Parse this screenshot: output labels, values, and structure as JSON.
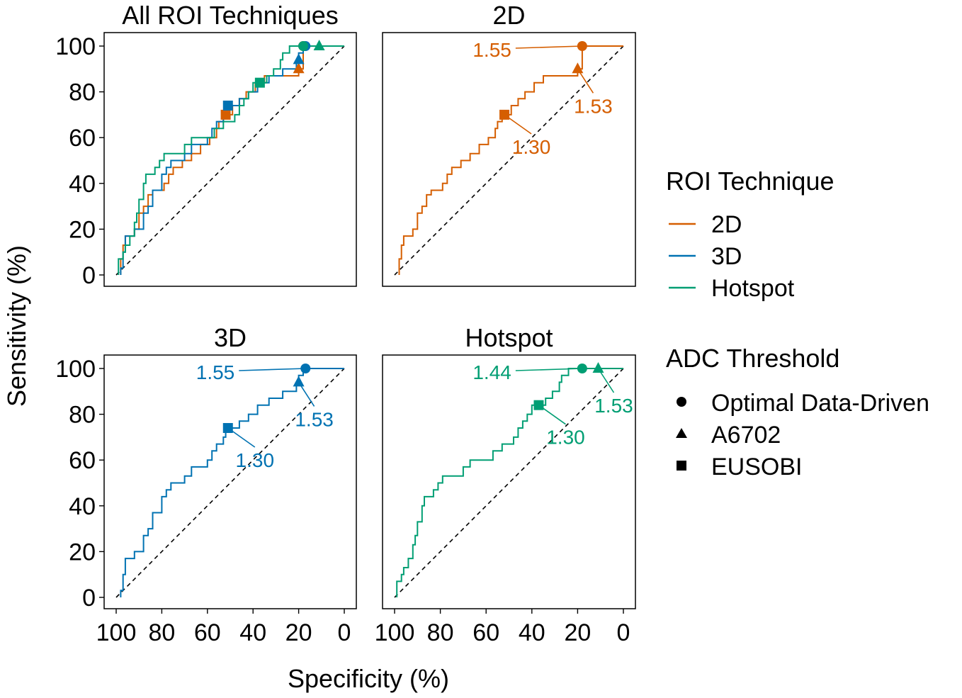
{
  "colors": {
    "2D": "#D55E00",
    "3D": "#0072B2",
    "Hotspot": "#009E73",
    "diagonal": "#000000"
  },
  "chart_data": {
    "type": "line",
    "subtype": "roc-step",
    "xlabel": "Specificity (%)",
    "ylabel": "Sensitivity (%)",
    "xlim": [
      100,
      0
    ],
    "ylim": [
      0,
      100
    ],
    "x_ticks": [
      "100",
      "80",
      "60",
      "40",
      "20",
      "0"
    ],
    "y_ticks": [
      "0",
      "20",
      "40",
      "60",
      "80",
      "100"
    ],
    "panels": [
      {
        "title": "All ROI Techniques",
        "series": [
          "2D",
          "3D",
          "Hotspot"
        ],
        "show_labels": false
      },
      {
        "title": "2D",
        "series": [
          "2D"
        ],
        "show_labels": true
      },
      {
        "title": "3D",
        "series": [
          "3D"
        ],
        "show_labels": true
      },
      {
        "title": "Hotspot",
        "series": [
          "Hotspot"
        ],
        "show_labels": true
      }
    ],
    "series": [
      {
        "name": "2D",
        "roc": [
          [
            98,
            0
          ],
          [
            98,
            7
          ],
          [
            97,
            7
          ],
          [
            97,
            13
          ],
          [
            96,
            13
          ],
          [
            96,
            17
          ],
          [
            92,
            17
          ],
          [
            92,
            20
          ],
          [
            90,
            20
          ],
          [
            90,
            27
          ],
          [
            88,
            27
          ],
          [
            88,
            30
          ],
          [
            86,
            30
          ],
          [
            86,
            35
          ],
          [
            84,
            35
          ],
          [
            84,
            37
          ],
          [
            79,
            37
          ],
          [
            79,
            40
          ],
          [
            77,
            40
          ],
          [
            77,
            44
          ],
          [
            75,
            44
          ],
          [
            75,
            47
          ],
          [
            71,
            47
          ],
          [
            71,
            50
          ],
          [
            67,
            50
          ],
          [
            67,
            53
          ],
          [
            63,
            53
          ],
          [
            63,
            57
          ],
          [
            59,
            57
          ],
          [
            59,
            60
          ],
          [
            56,
            60
          ],
          [
            56,
            64
          ],
          [
            55,
            64
          ],
          [
            55,
            67
          ],
          [
            53,
            67
          ],
          [
            53,
            70
          ],
          [
            49,
            70
          ],
          [
            49,
            74
          ],
          [
            46,
            74
          ],
          [
            46,
            77
          ],
          [
            43,
            77
          ],
          [
            43,
            80
          ],
          [
            39,
            80
          ],
          [
            39,
            84
          ],
          [
            35,
            84
          ],
          [
            35,
            87
          ],
          [
            20,
            87
          ],
          [
            20,
            90
          ],
          [
            18,
            90
          ],
          [
            18,
            100
          ],
          [
            0,
            100
          ]
        ],
        "points": [
          {
            "marker": "Optimal Data-Driven",
            "spec": 18,
            "sens": 100,
            "label": "1.55"
          },
          {
            "marker": "A6702",
            "spec": 20,
            "sens": 90,
            "label": "1.53"
          },
          {
            "marker": "EUSOBI",
            "spec": 52,
            "sens": 70,
            "label": "1.30"
          }
        ]
      },
      {
        "name": "3D",
        "roc": [
          [
            98,
            0
          ],
          [
            98,
            3
          ],
          [
            97,
            3
          ],
          [
            97,
            10
          ],
          [
            96,
            10
          ],
          [
            96,
            17
          ],
          [
            92,
            17
          ],
          [
            92,
            20
          ],
          [
            88,
            20
          ],
          [
            88,
            27
          ],
          [
            86,
            27
          ],
          [
            86,
            30
          ],
          [
            84,
            30
          ],
          [
            84,
            37
          ],
          [
            80,
            37
          ],
          [
            80,
            44
          ],
          [
            78,
            44
          ],
          [
            78,
            47
          ],
          [
            76,
            47
          ],
          [
            76,
            50
          ],
          [
            70,
            50
          ],
          [
            70,
            53
          ],
          [
            67,
            53
          ],
          [
            67,
            57
          ],
          [
            60,
            57
          ],
          [
            60,
            60
          ],
          [
            58,
            60
          ],
          [
            58,
            64
          ],
          [
            56,
            64
          ],
          [
            56,
            67
          ],
          [
            53,
            67
          ],
          [
            53,
            70
          ],
          [
            52,
            70
          ],
          [
            52,
            74
          ],
          [
            46,
            74
          ],
          [
            46,
            77
          ],
          [
            42,
            77
          ],
          [
            42,
            80
          ],
          [
            38,
            80
          ],
          [
            38,
            84
          ],
          [
            33,
            84
          ],
          [
            33,
            87
          ],
          [
            27,
            87
          ],
          [
            27,
            90
          ],
          [
            21,
            90
          ],
          [
            21,
            93
          ],
          [
            20,
            93
          ],
          [
            20,
            97
          ],
          [
            18,
            97
          ],
          [
            18,
            100
          ],
          [
            0,
            100
          ]
        ],
        "points": [
          {
            "marker": "Optimal Data-Driven",
            "spec": 17,
            "sens": 100,
            "label": "1.55"
          },
          {
            "marker": "A6702",
            "spec": 20,
            "sens": 94,
            "label": "1.53"
          },
          {
            "marker": "EUSOBI",
            "spec": 51,
            "sens": 74,
            "label": "1.30"
          }
        ]
      },
      {
        "name": "Hotspot",
        "roc": [
          [
            99,
            0
          ],
          [
            99,
            7
          ],
          [
            97,
            7
          ],
          [
            97,
            10
          ],
          [
            96,
            10
          ],
          [
            96,
            13
          ],
          [
            94,
            13
          ],
          [
            94,
            17
          ],
          [
            92,
            17
          ],
          [
            92,
            23
          ],
          [
            91,
            23
          ],
          [
            91,
            27
          ],
          [
            90,
            27
          ],
          [
            90,
            33
          ],
          [
            88,
            33
          ],
          [
            88,
            40
          ],
          [
            87,
            40
          ],
          [
            87,
            44
          ],
          [
            83,
            44
          ],
          [
            83,
            47
          ],
          [
            81,
            47
          ],
          [
            81,
            50
          ],
          [
            79,
            50
          ],
          [
            79,
            53
          ],
          [
            70,
            53
          ],
          [
            70,
            57
          ],
          [
            67,
            57
          ],
          [
            67,
            60
          ],
          [
            57,
            60
          ],
          [
            57,
            64
          ],
          [
            53,
            64
          ],
          [
            53,
            67
          ],
          [
            48,
            67
          ],
          [
            48,
            70
          ],
          [
            46,
            70
          ],
          [
            46,
            74
          ],
          [
            44,
            74
          ],
          [
            44,
            77
          ],
          [
            42,
            77
          ],
          [
            42,
            80
          ],
          [
            40,
            80
          ],
          [
            40,
            84
          ],
          [
            34,
            84
          ],
          [
            34,
            87
          ],
          [
            31,
            87
          ],
          [
            31,
            90
          ],
          [
            28,
            90
          ],
          [
            28,
            94
          ],
          [
            27,
            94
          ],
          [
            27,
            97
          ],
          [
            24,
            97
          ],
          [
            24,
            100
          ],
          [
            0,
            100
          ]
        ],
        "points": [
          {
            "marker": "Optimal Data-Driven",
            "spec": 18,
            "sens": 100,
            "label": "1.44"
          },
          {
            "marker": "A6702",
            "spec": 11,
            "sens": 100,
            "label": "1.53"
          },
          {
            "marker": "EUSOBI",
            "spec": 37,
            "sens": 84,
            "label": "1.30"
          }
        ]
      }
    ],
    "legend": {
      "position": "right",
      "roi": {
        "title": "ROI Technique",
        "items": [
          "2D",
          "3D",
          "Hotspot"
        ]
      },
      "adc": {
        "title": "ADC Threshold",
        "items": [
          {
            "marker": "circle",
            "label": "Optimal Data-Driven"
          },
          {
            "marker": "triangle",
            "label": "A6702"
          },
          {
            "marker": "square",
            "label": "EUSOBI"
          }
        ]
      }
    }
  }
}
